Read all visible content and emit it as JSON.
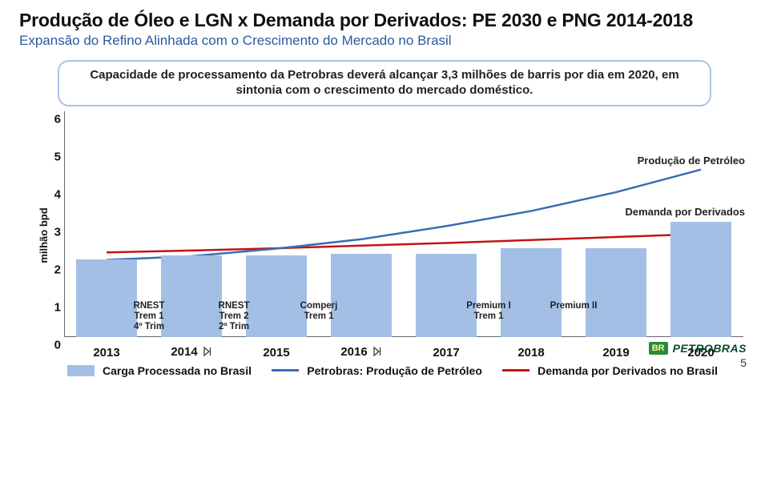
{
  "title": "Produção de Óleo e LGN x Demanda por Derivados: PE 2030 e PNG 2014-2018",
  "subtitle": "Expansão do Refino Alinhada com o Crescimento do Mercado no Brasil",
  "callout": "Capacidade de processamento da Petrobras deverá alcançar 3,3 milhões de barris por dia em 2020, em sintonia com o crescimento do mercado doméstico.",
  "chart": {
    "type": "bar+line",
    "ylabel": "milhão bpd",
    "ylim": [
      0,
      6
    ],
    "yticks": [
      0,
      1,
      2,
      3,
      4,
      5,
      6
    ],
    "xcategories": [
      "2013",
      "2014",
      "2015",
      "2016",
      "2017",
      "2018",
      "2019",
      "2020"
    ],
    "bar_color": "#a4bfe6",
    "bar_values": [
      2.05,
      2.15,
      2.15,
      2.2,
      2.2,
      2.35,
      2.35,
      3.05
    ],
    "bar_width_ratio": 0.72,
    "prod_line_color": "#3a6db5",
    "demanda_line_color": "#c31414",
    "prod_values": [
      2.05,
      2.15,
      2.35,
      2.6,
      2.95,
      3.35,
      3.85,
      4.45
    ],
    "demanda_values": [
      2.25,
      2.3,
      2.36,
      2.43,
      2.5,
      2.58,
      2.66,
      2.74
    ],
    "line_width": 2.5,
    "annotations": [
      {
        "label_lines": [
          "RNEST",
          "Trem 1",
          "4º Trim"
        ],
        "between": [
          0,
          1
        ]
      },
      {
        "label_lines": [
          "RNEST",
          "Trem 2",
          "2º Trim"
        ],
        "between": [
          1,
          2
        ]
      },
      {
        "label_lines": [
          "Comperj",
          "Trem 1"
        ],
        "between": [
          2,
          3
        ]
      },
      {
        "label_lines": [
          "Premium I",
          "Trem 1"
        ],
        "between": [
          4,
          5
        ]
      },
      {
        "label_lines": [
          "Premium II"
        ],
        "between": [
          5,
          6
        ]
      }
    ],
    "forward_icon_after": [
      1,
      3
    ],
    "side_labels": {
      "prod": "Produção de Petróleo",
      "demanda": "Demanda por Derivados"
    },
    "legend": {
      "bar": "Carga Processada no Brasil",
      "prod": "Petrobras: Produção de Petróleo",
      "demanda": "Demanda por Derivados no Brasil"
    },
    "background_color": "#ffffff",
    "axis_color": "#666666"
  },
  "page_number": "5",
  "logo": {
    "br": "BR",
    "name": "PETROBRAS"
  }
}
